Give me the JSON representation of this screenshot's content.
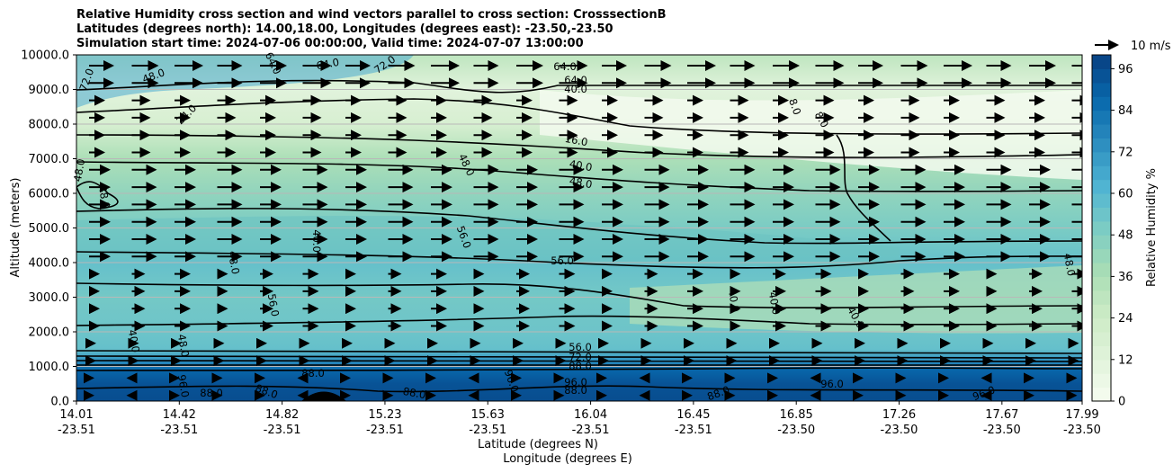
{
  "chart_data": {
    "type": "heatmap",
    "title_lines": [
      "Relative Humidity cross section and wind vectors parallel to cross section: CrosssectionB",
      "Latitudes (degrees north): 14.00,18.00, Longitudes (degrees east): -23.50,-23.50",
      "Simulation start time: 2024-07-06 00:00:00, Valid time: 2024-07-07 13:00:00"
    ],
    "ylabel": "Altitude (meters)",
    "xlabel_lines": [
      "Latitude (degrees N)",
      "Longitude (degrees E)"
    ],
    "ylim": [
      0,
      10000
    ],
    "yticks": [
      "0.0",
      "1000.0",
      "2000.0",
      "3000.0",
      "4000.0",
      "5000.0",
      "6000.0",
      "7000.0",
      "8000.0",
      "9000.0",
      "10000.0"
    ],
    "xticks_lat": [
      "14.01",
      "14.42",
      "14.82",
      "15.23",
      "15.63",
      "16.04",
      "16.45",
      "16.85",
      "17.26",
      "17.67",
      "17.99"
    ],
    "xticks_lon": [
      "-23.51",
      "-23.51",
      "-23.51",
      "-23.51",
      "-23.51",
      "-23.51",
      "-23.51",
      "-23.50",
      "-23.50",
      "-23.50",
      "-23.50"
    ],
    "colorbar": {
      "label": "Relative Humidity %",
      "ticks": [
        "0",
        "12",
        "24",
        "36",
        "48",
        "60",
        "72",
        "84",
        "96"
      ],
      "range": [
        0,
        100
      ],
      "colors": [
        "#f7fcf0",
        "#e0f3db",
        "#ccebc5",
        "#a8ddb5",
        "#7bccc4",
        "#4eb3d3",
        "#2b8cbe",
        "#0868ac",
        "#084081"
      ]
    },
    "vector_key": "10 m/s",
    "grid": "horizontal",
    "contour_labels": [
      "96.0",
      "88.0",
      "72.0",
      "64.0",
      "56.0",
      "48.0",
      "40.0",
      "24.0",
      "16.0",
      "8.0"
    ],
    "profile": [
      {
        "altitude": 0,
        "rh": 96
      },
      {
        "altitude": 500,
        "rh": 94
      },
      {
        "altitude": 900,
        "rh": 88
      },
      {
        "altitude": 1200,
        "rh": 72
      },
      {
        "altitude": 1500,
        "rh": 56
      },
      {
        "altitude": 2000,
        "rh": 54
      },
      {
        "altitude": 3000,
        "rh": 52
      },
      {
        "altitude": 4000,
        "rh": 56
      },
      {
        "altitude": 5000,
        "rh": 50
      },
      {
        "altitude": 6000,
        "rh": 44
      },
      {
        "altitude": 7000,
        "rh": 36
      },
      {
        "altitude": 8000,
        "rh": 18
      },
      {
        "altitude": 9000,
        "rh": 12
      },
      {
        "altitude": 10000,
        "rh": 30
      }
    ]
  }
}
